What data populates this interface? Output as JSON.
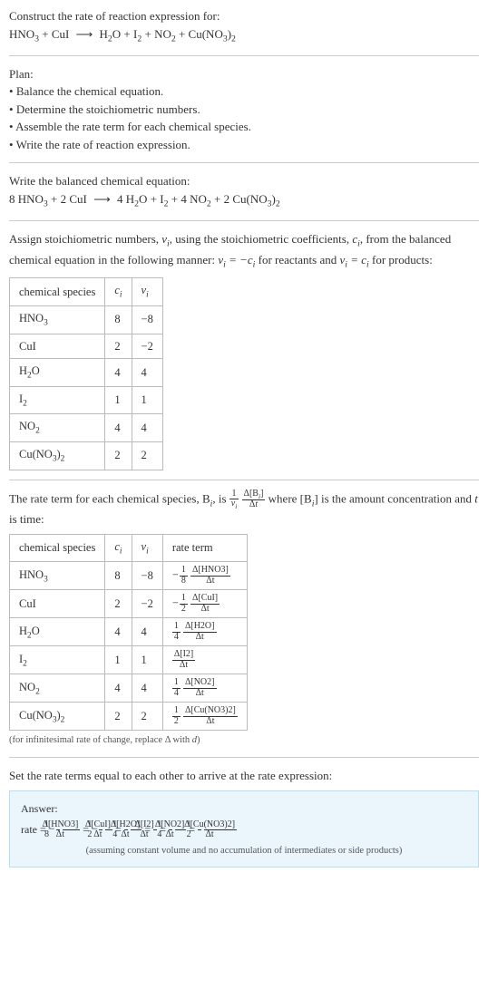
{
  "header": {
    "prompt": "Construct the rate of reaction expression for:",
    "equation": {
      "lhs": [
        "HNO_3",
        "CuI"
      ],
      "rhs": [
        "H_2O",
        "I_2",
        "NO_2",
        "Cu(NO_3)_2"
      ]
    }
  },
  "plan": {
    "title": "Plan:",
    "items": [
      "Balance the chemical equation.",
      "Determine the stoichiometric numbers.",
      "Assemble the rate term for each chemical species.",
      "Write the rate of reaction expression."
    ]
  },
  "balanced": {
    "title": "Write the balanced chemical equation:",
    "coeffs_lhs": [
      "8",
      "2"
    ],
    "species_lhs": [
      "HNO_3",
      "CuI"
    ],
    "coeffs_rhs": [
      "4",
      "",
      "4",
      "2"
    ],
    "species_rhs": [
      "H_2O",
      "I_2",
      "NO_2",
      "Cu(NO_3)_2"
    ]
  },
  "stoich": {
    "intro_1": "Assign stoichiometric numbers, ",
    "nu_sym": "ν_i",
    "intro_2": ", using the stoichiometric coefficients, ",
    "c_sym": "c_i",
    "intro_3": ", from the balanced chemical equation in the following manner: ",
    "rule_react": "ν_i = −c_i",
    "intro_4": " for reactants and ",
    "rule_prod": "ν_i = c_i",
    "intro_5": " for products:",
    "headers": [
      "chemical species",
      "c_i",
      "ν_i"
    ],
    "rows": [
      {
        "species": "HNO_3",
        "c": "8",
        "nu": "−8"
      },
      {
        "species": "CuI",
        "c": "2",
        "nu": "−2"
      },
      {
        "species": "H_2O",
        "c": "4",
        "nu": "4"
      },
      {
        "species": "I_2",
        "c": "1",
        "nu": "1"
      },
      {
        "species": "NO_2",
        "c": "4",
        "nu": "4"
      },
      {
        "species": "Cu(NO_3)_2",
        "c": "2",
        "nu": "2"
      }
    ]
  },
  "rateterm": {
    "intro_1": "The rate term for each chemical species, B",
    "intro_2": ", is ",
    "general": {
      "coef_num": "1",
      "coef_den": "ν_i",
      "delta_num": "Δ[B_i]",
      "delta_den": "Δt"
    },
    "intro_3": " where [B",
    "intro_4": "] is the amount concentration and ",
    "t_sym": "t",
    "intro_5": " is time:",
    "headers": [
      "chemical species",
      "c_i",
      "ν_i",
      "rate term"
    ],
    "rows": [
      {
        "species": "HNO_3",
        "c": "8",
        "nu": "−8",
        "sign": "−",
        "coef_num": "1",
        "coef_den": "8",
        "delta_num": "Δ[HNO3]",
        "delta_den": "Δt"
      },
      {
        "species": "CuI",
        "c": "2",
        "nu": "−2",
        "sign": "−",
        "coef_num": "1",
        "coef_den": "2",
        "delta_num": "Δ[CuI]",
        "delta_den": "Δt"
      },
      {
        "species": "H_2O",
        "c": "4",
        "nu": "4",
        "sign": "",
        "coef_num": "1",
        "coef_den": "4",
        "delta_num": "Δ[H2O]",
        "delta_den": "Δt"
      },
      {
        "species": "I_2",
        "c": "1",
        "nu": "1",
        "sign": "",
        "coef_num": "",
        "coef_den": "",
        "delta_num": "Δ[I2]",
        "delta_den": "Δt"
      },
      {
        "species": "NO_2",
        "c": "4",
        "nu": "4",
        "sign": "",
        "coef_num": "1",
        "coef_den": "4",
        "delta_num": "Δ[NO2]",
        "delta_den": "Δt"
      },
      {
        "species": "Cu(NO_3)_2",
        "c": "2",
        "nu": "2",
        "sign": "",
        "coef_num": "1",
        "coef_den": "2",
        "delta_num": "Δ[Cu(NO3)2]",
        "delta_den": "Δt"
      }
    ],
    "footnote": "(for infinitesimal rate of change, replace Δ with d)"
  },
  "final": {
    "title": "Set the rate terms equal to each other to arrive at the rate expression:",
    "answer_label": "Answer:",
    "rate_eq": "rate = ",
    "terms": [
      {
        "sign": "−",
        "coef_num": "1",
        "coef_den": "8",
        "delta_num": "Δ[HNO3]",
        "delta_den": "Δt"
      },
      {
        "sign": "−",
        "coef_num": "1",
        "coef_den": "2",
        "delta_num": "Δ[CuI]",
        "delta_den": "Δt"
      },
      {
        "sign": "",
        "coef_num": "1",
        "coef_den": "4",
        "delta_num": "Δ[H2O]",
        "delta_den": "Δt"
      },
      {
        "sign": "",
        "coef_num": "",
        "coef_den": "",
        "delta_num": "Δ[I2]",
        "delta_den": "Δt"
      },
      {
        "sign": "",
        "coef_num": "1",
        "coef_den": "4",
        "delta_num": "Δ[NO2]",
        "delta_den": "Δt"
      },
      {
        "sign": "",
        "coef_num": "1",
        "coef_den": "2",
        "delta_num": "Δ[Cu(NO3)2]",
        "delta_den": "Δt"
      }
    ],
    "assumption": "(assuming constant volume and no accumulation of intermediates or side products)"
  },
  "colors": {
    "text": "#333333",
    "rule": "#cccccc",
    "table_border": "#bbbbbb",
    "answer_bg": "#eaf6fb",
    "answer_border": "#b6dff0"
  }
}
